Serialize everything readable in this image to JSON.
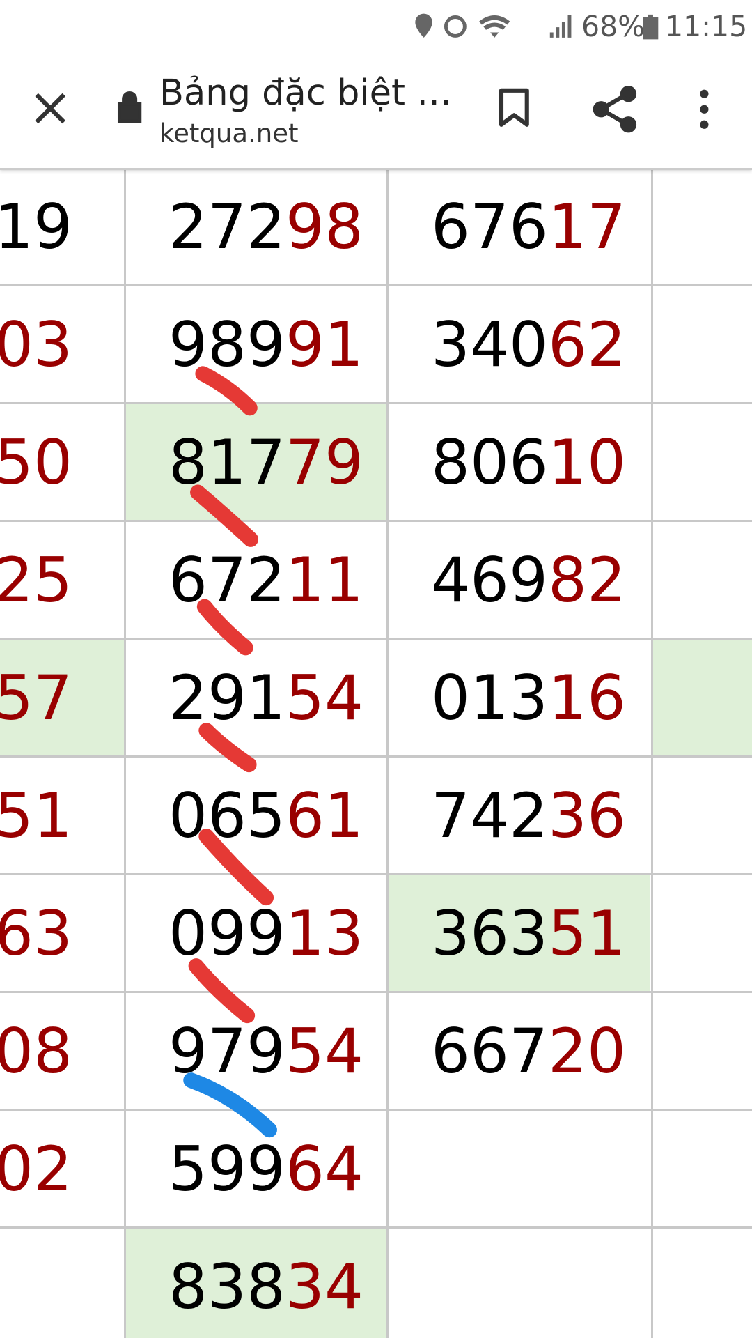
{
  "status": {
    "battery": "68%",
    "time": "11:15"
  },
  "toolbar": {
    "title": "Bảng đặc biệt …",
    "url": "ketqua.net"
  },
  "table": {
    "rows": [
      [
        {
          "head": "19"
        },
        {
          "head": "272",
          "tail": "98"
        },
        {
          "head": "676",
          "tail": "17"
        }
      ],
      [
        {
          "tail": "03"
        },
        {
          "head": "989",
          "tail": "91"
        },
        {
          "head": "340",
          "tail": "62"
        }
      ],
      [
        {
          "tail": "50"
        },
        {
          "head": "817",
          "tail": "79"
        },
        {
          "head": "806",
          "tail": "10"
        }
      ],
      [
        {
          "tail": "25"
        },
        {
          "head": "672",
          "tail": "11"
        },
        {
          "head": "469",
          "tail": "82"
        }
      ],
      [
        {
          "tail": "57"
        },
        {
          "head": "291",
          "tail": "54"
        },
        {
          "head": "013",
          "tail": "16"
        }
      ],
      [
        {
          "tail": "51"
        },
        {
          "head": "065",
          "tail": "61"
        },
        {
          "head": "742",
          "tail": "36"
        }
      ],
      [
        {
          "tail": "63"
        },
        {
          "head": "099",
          "tail": "13"
        },
        {
          "head": "363",
          "tail": "51"
        }
      ],
      [
        {
          "tail": "08"
        },
        {
          "head": "979",
          "tail": "54"
        },
        {
          "head": "667",
          "tail": "20"
        }
      ],
      [
        {
          "tail": "02"
        },
        {
          "head": "599",
          "tail": "64"
        },
        null
      ],
      [
        null,
        {
          "head": "838",
          "tail": "34"
        },
        null
      ]
    ]
  }
}
